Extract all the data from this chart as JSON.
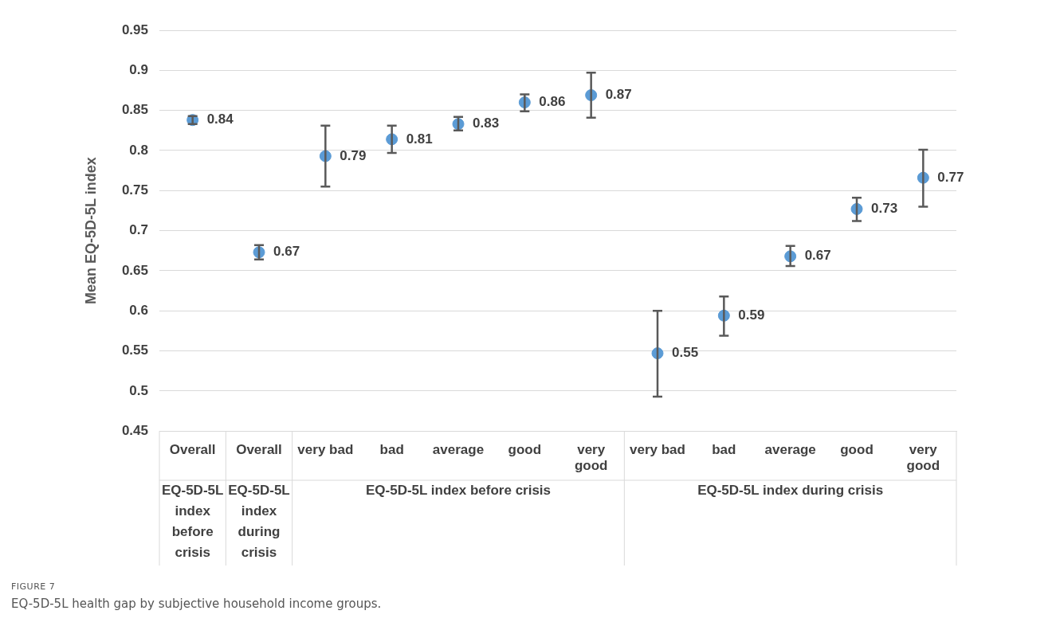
{
  "chart_data": {
    "type": "scatter",
    "ylabel": "Mean EQ-5D-5L index",
    "categories": [
      "Overall",
      "Overall",
      "very bad",
      "bad",
      "average",
      "good",
      "very good",
      "very bad",
      "bad",
      "average",
      "good",
      "very good"
    ],
    "values": [
      0.838,
      0.673,
      0.793,
      0.814,
      0.833,
      0.86,
      0.869,
      0.547,
      0.594,
      0.668,
      0.727,
      0.766
    ],
    "errors": [
      [
        0.833,
        0.843
      ],
      [
        0.664,
        0.682
      ],
      [
        0.755,
        0.831
      ],
      [
        0.797,
        0.831
      ],
      [
        0.825,
        0.842
      ],
      [
        0.849,
        0.87
      ],
      [
        0.841,
        0.897
      ],
      [
        0.493,
        0.6
      ],
      [
        0.569,
        0.618
      ],
      [
        0.656,
        0.681
      ],
      [
        0.712,
        0.741
      ],
      [
        0.73,
        0.801
      ]
    ],
    "value_labels": [
      "0.84",
      "0.67",
      "0.79",
      "0.81",
      "0.83",
      "0.86",
      "0.87",
      "0.55",
      "0.59",
      "0.67",
      "0.73",
      "0.77"
    ],
    "color": "#5b9bd5",
    "marker": "circle",
    "grid": "y",
    "legend": false,
    "ylim": [
      0.45,
      0.95
    ],
    "yticks": [
      0.45,
      0.5,
      0.55,
      0.6,
      0.65,
      0.7,
      0.75,
      0.8,
      0.85,
      0.9,
      0.95
    ],
    "annotations": [
      "EQ-5D-5L index before crisis",
      "EQ-5D-5L index during crisis",
      "EQ-5D-5L index before crisis",
      "EQ-5D-5L index during crisis",
      "FIGURE 7",
      "EQ-5D-5L health gap by subjective household income groups."
    ]
  }
}
